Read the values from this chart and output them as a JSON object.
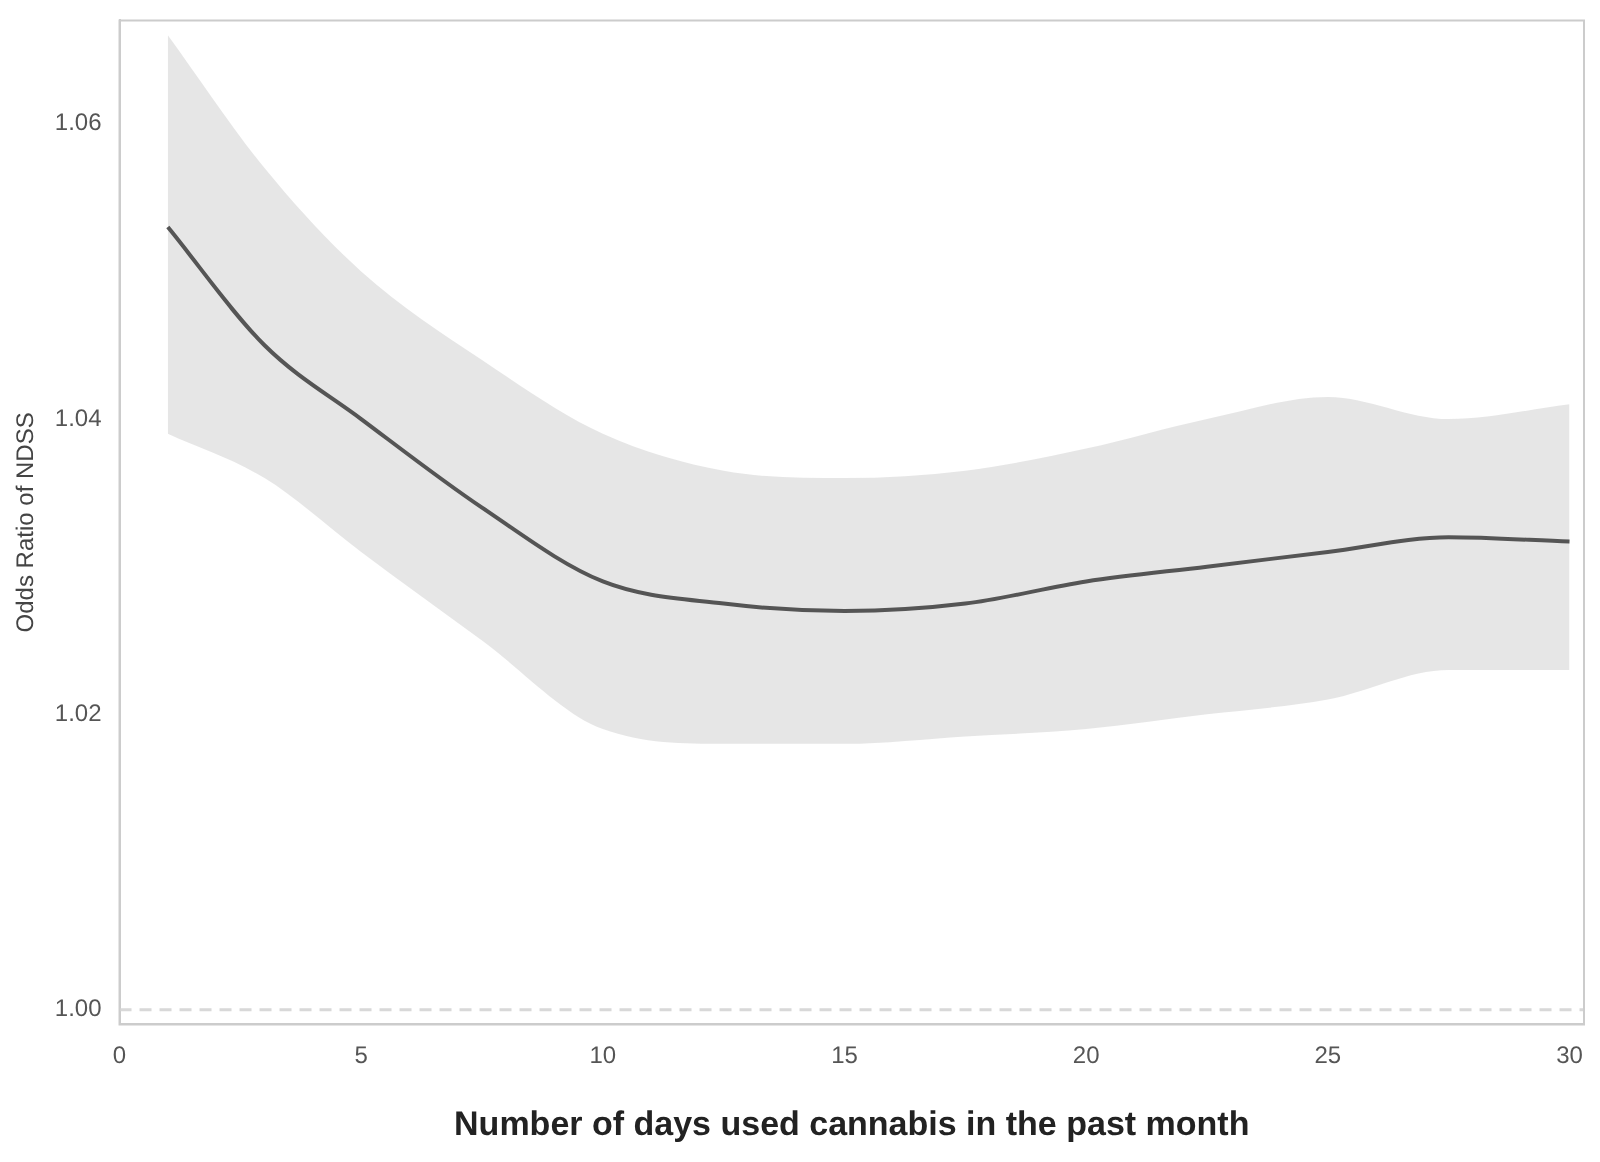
{
  "chart_data": {
    "type": "line",
    "xlabel": "Number of days used cannabis in the past month",
    "ylabel": "Odds Ratio of NDSS",
    "x": [
      1,
      3,
      5,
      7.5,
      10,
      12.5,
      15,
      17.5,
      20,
      22.5,
      25,
      27.5,
      30
    ],
    "series": [
      {
        "color": "#555555",
        "values": [
          1.053,
          1.045,
          1.04,
          1.034,
          1.029,
          1.0275,
          1.027,
          1.0275,
          1.029,
          1.03,
          1.031,
          1.032,
          1.0317
        ],
        "lower": [
          1.039,
          1.036,
          1.031,
          1.025,
          1.019,
          1.018,
          1.018,
          1.0185,
          1.019,
          1.02,
          1.021,
          1.023,
          1.023
        ],
        "upper": [
          1.066,
          1.057,
          1.05,
          1.044,
          1.039,
          1.0365,
          1.036,
          1.0365,
          1.038,
          1.04,
          1.0415,
          1.04,
          1.041
        ]
      }
    ],
    "xlim": [
      0,
      30.3
    ],
    "xticks": [
      0,
      5,
      10,
      15,
      20,
      25,
      30
    ],
    "ylim": [
      0.999,
      1.067
    ],
    "yticks": [
      {
        "value": 1,
        "label": "1.00"
      },
      {
        "value": 1.02,
        "label": "1.02"
      },
      {
        "value": 1.04,
        "label": "1.04"
      },
      {
        "value": 1.06,
        "label": "1.06"
      }
    ],
    "ref_lines": [
      {
        "axis": "y",
        "value": 1,
        "color": "#d8d8d8",
        "line_style": "dashed"
      }
    ],
    "grid": false,
    "legend": false,
    "marker": "none",
    "line_style": "solid"
  }
}
